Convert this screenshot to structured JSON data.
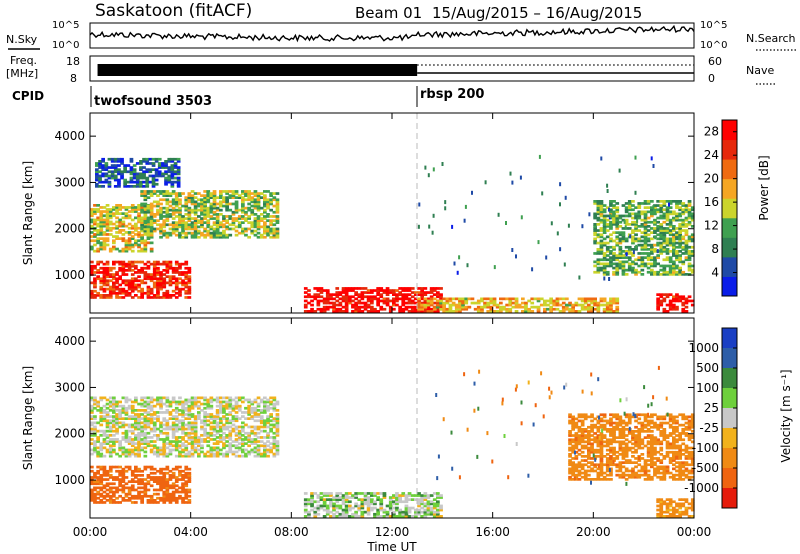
{
  "header": {
    "station": "Saskatoon (fitACF)",
    "beam_label": "Beam 01",
    "date_range": "15/Aug/2015 – 16/Aug/2015"
  },
  "noise_panel": {
    "left_label": "N.Sky",
    "right_label": "N.Search",
    "ticks": [
      "10^5",
      "10^0"
    ]
  },
  "freq_panel": {
    "label_line1": "Freq.",
    "label_line2": "[MHz]",
    "left_ticks": [
      "18",
      "8"
    ],
    "right_ticks": [
      "60",
      "0"
    ],
    "right_label": "Nave"
  },
  "cpid_panel": {
    "label": "CPID",
    "programs": [
      {
        "name": "twofsound 3503",
        "start_hour": 0
      },
      {
        "name": "rbsp 200",
        "start_hour": 13
      }
    ]
  },
  "colors": {
    "power": [
      "#0a1de8",
      "#1f4aa6",
      "#2f7f52",
      "#3fa050",
      "#cbd42c",
      "#f5a623",
      "#ef6a10",
      "#e6280b",
      "#ff0000"
    ],
    "velocity_pos": [
      "#1a3fc4",
      "#2e5ea8",
      "#3b8a3c",
      "#6ed03c"
    ],
    "velocity_mid": "#c8c8c8",
    "velocity_neg": [
      "#f2b21c",
      "#f08a14",
      "#ef6410",
      "#e51b0b"
    ],
    "grid": "#bbbbbb"
  },
  "chart_data": [
    {
      "type": "heatmap",
      "name": "power",
      "ylabel": "Slant Range [km]",
      "y_ticks": [
        1000,
        2000,
        3000,
        4000
      ],
      "ylim": [
        180,
        4500
      ],
      "xlim": [
        0,
        24
      ],
      "colorbar": {
        "label": "Power [dB]",
        "ticks": [
          4,
          8,
          12,
          16,
          20,
          24,
          28
        ],
        "range": [
          0,
          30
        ]
      },
      "echo_regions": [
        {
          "hours": [
            0.0,
            4.0
          ],
          "range_km": [
            500,
            1300
          ],
          "value": 26
        },
        {
          "hours": [
            0.0,
            2.5
          ],
          "range_km": [
            1500,
            2500
          ],
          "value": 16
        },
        {
          "hours": [
            2.0,
            7.5
          ],
          "range_km": [
            1800,
            2800
          ],
          "value": 14
        },
        {
          "hours": [
            0.2,
            3.5
          ],
          "range_km": [
            2900,
            3500
          ],
          "value": 6
        },
        {
          "hours": [
            8.5,
            14.0
          ],
          "range_km": [
            200,
            700
          ],
          "value": 28
        },
        {
          "hours": [
            13.0,
            21.0
          ],
          "range_km": [
            200,
            500
          ],
          "value": 18
        },
        {
          "hours": [
            22.5,
            24.0
          ],
          "range_km": [
            200,
            600
          ],
          "value": 28
        },
        {
          "hours": [
            20.0,
            24.0
          ],
          "range_km": [
            1000,
            2600
          ],
          "value": 12
        }
      ]
    },
    {
      "type": "heatmap",
      "name": "velocity",
      "ylabel": "Slant Range [km]",
      "xlabel": "Time UT",
      "x_ticks": [
        "00:00",
        "04:00",
        "08:00",
        "12:00",
        "16:00",
        "20:00",
        "00:00"
      ],
      "y_ticks": [
        1000,
        2000,
        3000,
        4000
      ],
      "ylim": [
        180,
        4500
      ],
      "xlim": [
        0,
        24
      ],
      "colorbar": {
        "label": "Velocity [m s⁻¹]",
        "ticks": [
          1000,
          500,
          100,
          25,
          -25,
          -100,
          -500,
          -1000
        ]
      },
      "echo_regions": [
        {
          "hours": [
            0.0,
            4.0
          ],
          "range_km": [
            500,
            1300
          ],
          "value": -300
        },
        {
          "hours": [
            0.0,
            7.5
          ],
          "range_km": [
            1500,
            2800
          ],
          "value": 0
        },
        {
          "hours": [
            8.5,
            14.0
          ],
          "range_km": [
            200,
            700
          ],
          "value": 20
        },
        {
          "hours": [
            19.0,
            24.0
          ],
          "range_km": [
            1000,
            2400
          ],
          "value": -200
        },
        {
          "hours": [
            22.5,
            24.0
          ],
          "range_km": [
            200,
            600
          ],
          "value": -100
        }
      ]
    }
  ]
}
